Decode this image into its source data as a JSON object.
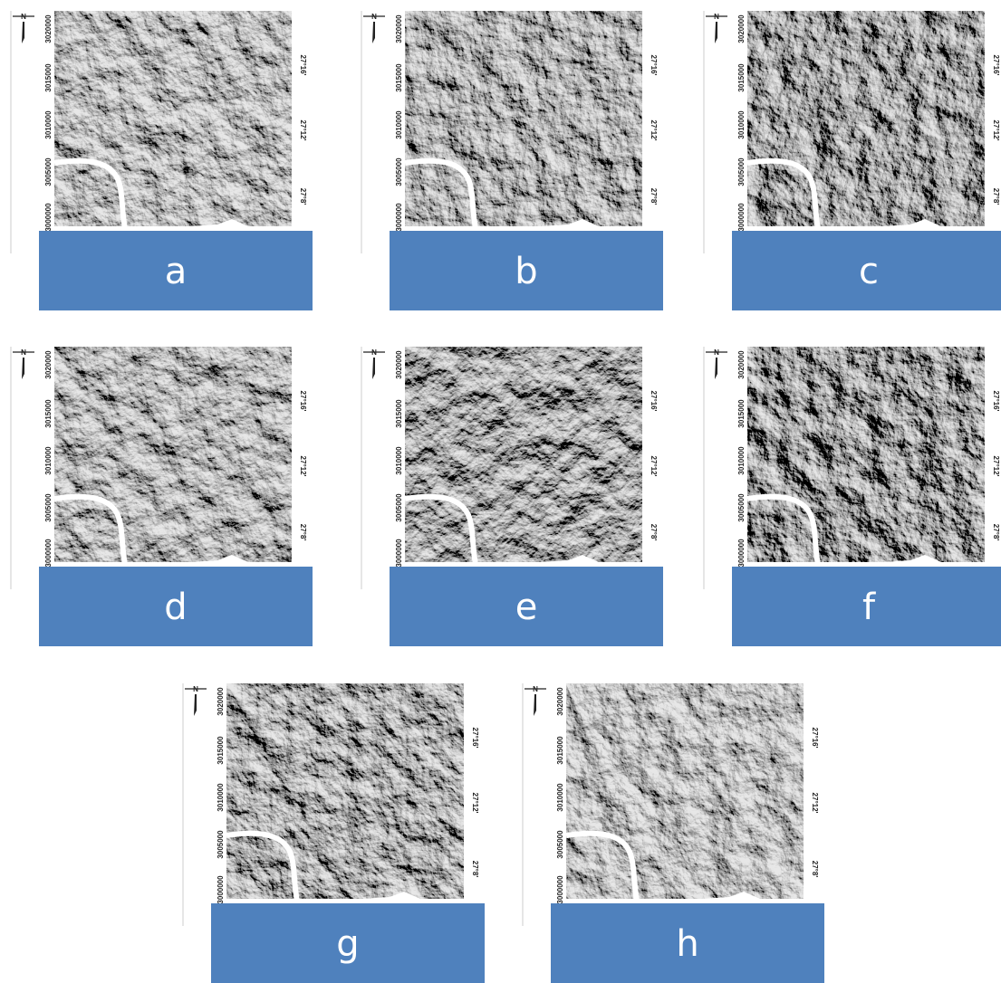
{
  "north": "N",
  "northing": [
    "3000000",
    "3005000",
    "3010000",
    "3015000",
    "3020000"
  ],
  "latitude": [
    "27°8'",
    "27°12'",
    "27°16'"
  ],
  "panels": [
    {
      "label": "a"
    },
    {
      "label": "b"
    },
    {
      "label": "c"
    },
    {
      "label": "d"
    },
    {
      "label": "e"
    },
    {
      "label": "f"
    },
    {
      "label": "g"
    },
    {
      "label": "h"
    }
  ]
}
